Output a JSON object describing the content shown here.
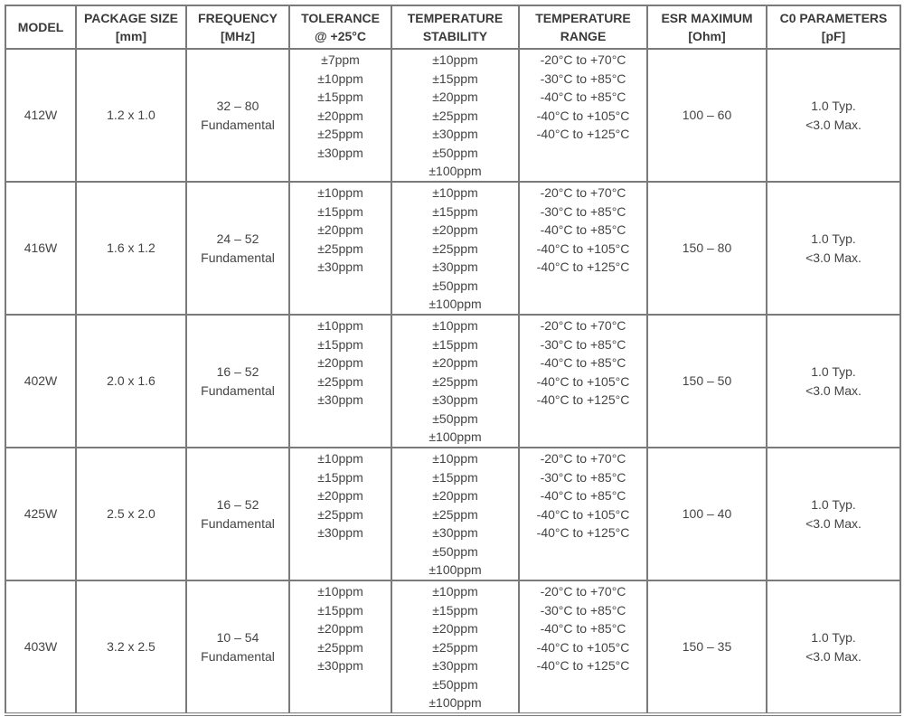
{
  "headers": [
    [
      "MODEL"
    ],
    [
      "PACKAGE SIZE",
      "[mm]"
    ],
    [
      "FREQUENCY",
      "[MHz]"
    ],
    [
      "TOLERANCE",
      "@ +25°C"
    ],
    [
      "TEMPERATURE",
      "STABILITY"
    ],
    [
      "TEMPERATURE",
      "RANGE"
    ],
    [
      "ESR MAXIMUM",
      "[Ohm]"
    ],
    [
      "C0 PARAMETERS",
      "[pF]"
    ]
  ],
  "rows": [
    {
      "model": "412W",
      "package": "1.2 x 1.0",
      "frequency": [
        "32 – 80",
        "Fundamental"
      ],
      "tolerance": [
        "±7ppm",
        "±10ppm",
        "±15ppm",
        "±20ppm",
        "±25ppm",
        "±30ppm"
      ],
      "stability": [
        "±10ppm",
        "±15ppm",
        "±20ppm",
        "±25ppm",
        "±30ppm",
        "±50ppm",
        "±100ppm"
      ],
      "range": [
        "-20°C to +70°C",
        "-30°C to +85°C",
        "-40°C to +85°C",
        "-40°C to +105°C",
        "-40°C to +125°C"
      ],
      "esr": "100 – 60",
      "c0": [
        "1.0 Typ.",
        "<3.0 Max."
      ]
    },
    {
      "model": "416W",
      "package": "1.6 x 1.2",
      "frequency": [
        "24 – 52",
        "Fundamental"
      ],
      "tolerance": [
        "±10ppm",
        "±15ppm",
        "±20ppm",
        "±25ppm",
        "±30ppm"
      ],
      "stability": [
        "±10ppm",
        "±15ppm",
        "±20ppm",
        "±25ppm",
        "±30ppm",
        "±50ppm",
        "±100ppm"
      ],
      "range": [
        "-20°C to +70°C",
        "-30°C to +85°C",
        "-40°C to +85°C",
        "-40°C to +105°C",
        "-40°C to +125°C"
      ],
      "esr": "150 – 80",
      "c0": [
        "1.0 Typ.",
        "<3.0 Max."
      ]
    },
    {
      "model": "402W",
      "package": "2.0 x 1.6",
      "frequency": [
        "16 – 52",
        "Fundamental"
      ],
      "tolerance": [
        "±10ppm",
        "±15ppm",
        "±20ppm",
        "±25ppm",
        "±30ppm"
      ],
      "stability": [
        "±10ppm",
        "±15ppm",
        "±20ppm",
        "±25ppm",
        "±30ppm",
        "±50ppm",
        "±100ppm"
      ],
      "range": [
        "-20°C to +70°C",
        "-30°C to +85°C",
        "-40°C to +85°C",
        "-40°C to +105°C",
        "-40°C to +125°C"
      ],
      "esr": "150 – 50",
      "c0": [
        "1.0 Typ.",
        "<3.0 Max."
      ]
    },
    {
      "model": "425W",
      "package": "2.5 x 2.0",
      "frequency": [
        "16 – 52",
        "Fundamental"
      ],
      "tolerance": [
        "±10ppm",
        "±15ppm",
        "±20ppm",
        "±25ppm",
        "±30ppm"
      ],
      "stability": [
        "±10ppm",
        "±15ppm",
        "±20ppm",
        "±25ppm",
        "±30ppm",
        "±50ppm",
        "±100ppm"
      ],
      "range": [
        "-20°C to +70°C",
        "-30°C to +85°C",
        "-40°C to +85°C",
        "-40°C to +105°C",
        "-40°C to +125°C"
      ],
      "esr": "100 – 40",
      "c0": [
        "1.0 Typ.",
        "<3.0 Max."
      ]
    },
    {
      "model": "403W",
      "package": "3.2 x 2.5",
      "frequency": [
        "10 – 54",
        "Fundamental"
      ],
      "tolerance": [
        "±10ppm",
        "±15ppm",
        "±20ppm",
        "±25ppm",
        "±30ppm"
      ],
      "stability": [
        "±10ppm",
        "±15ppm",
        "±20ppm",
        "±25ppm",
        "±30ppm",
        "±50ppm",
        "±100ppm"
      ],
      "range": [
        "-20°C to +70°C",
        "-30°C to +85°C",
        "-40°C to +85°C",
        "-40°C to +105°C",
        "-40°C to +125°C"
      ],
      "esr": "150 – 35",
      "c0": [
        "1.0 Typ.",
        "<3.0 Max."
      ]
    }
  ]
}
